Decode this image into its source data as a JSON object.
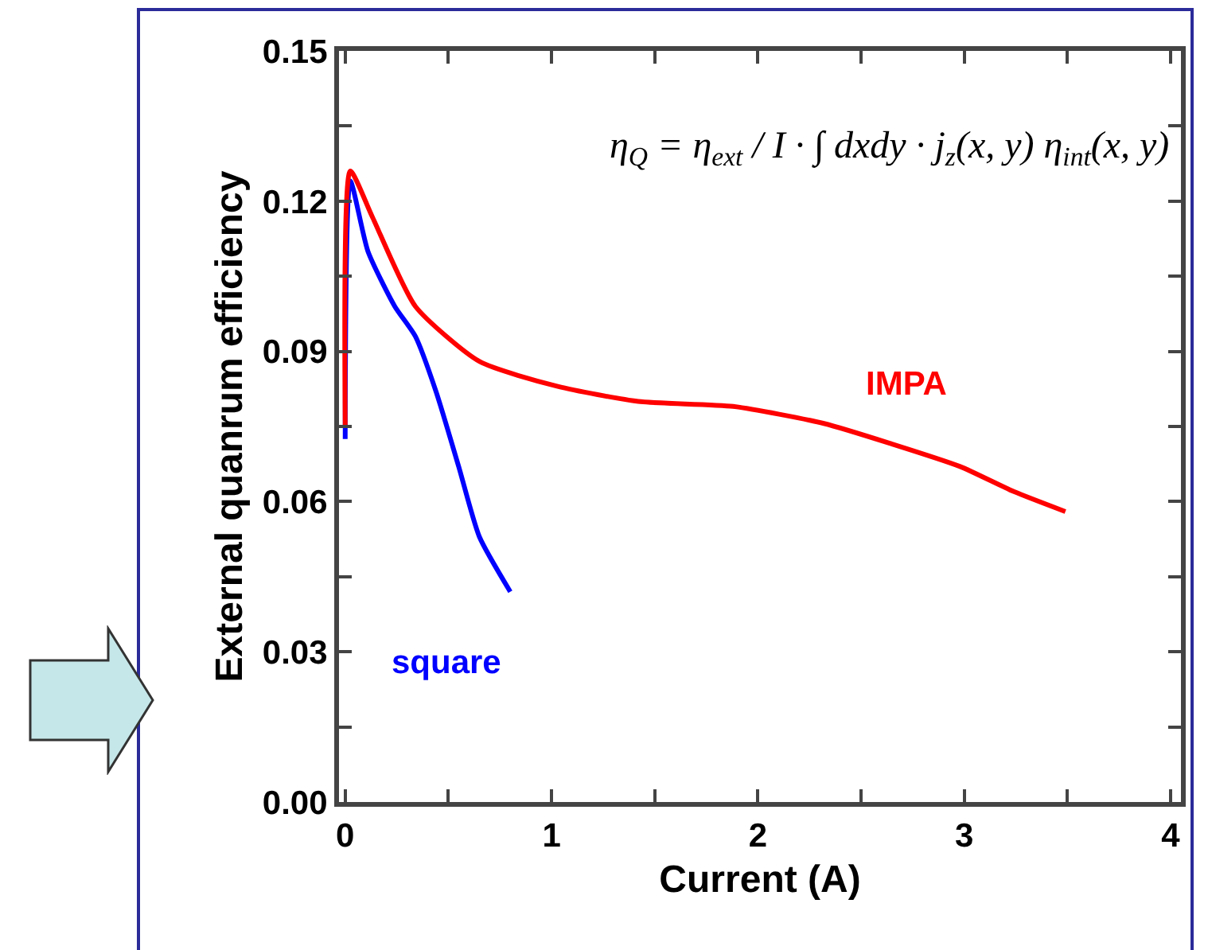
{
  "chart_data": {
    "type": "line",
    "xlabel": "Current (A)",
    "ylabel": "External quanrum efficiency",
    "xlim": [
      -0.03,
      4.05
    ],
    "ylim": [
      0,
      0.15
    ],
    "xticks": [
      0,
      {
        "value": 0.5,
        "label": null
      },
      1,
      {
        "value": 1.5,
        "label": null
      },
      2,
      {
        "value": 2.5,
        "label": null
      },
      3,
      {
        "value": 3.5,
        "label": null
      },
      4
    ],
    "yticks": [
      {
        "value": 0,
        "label": "0.00"
      },
      {
        "value": 0.015,
        "label": null
      },
      {
        "value": 0.03,
        "label": "0.03"
      },
      {
        "value": 0.045,
        "label": null
      },
      {
        "value": 0.06,
        "label": "0.06"
      },
      {
        "value": 0.075,
        "label": null
      },
      {
        "value": 0.09,
        "label": "0.09"
      },
      {
        "value": 0.105,
        "label": null
      },
      {
        "value": 0.12,
        "label": "0.12"
      },
      {
        "value": 0.135,
        "label": null
      },
      {
        "value": 0.15,
        "label": "0.15"
      }
    ],
    "grid": false,
    "legend": false,
    "marker": "none",
    "line_style": "solid",
    "annotations": [
      "η$_{Q}$ = η$_{ext}$ / I · ∫ dxdy · j$_{z}$(x, y) η$_{int}$(x, y)"
    ],
    "series": [
      {
        "name": "IMPA",
        "color": "#ff0000",
        "x": [
          0,
          0.025,
          0.13,
          0.34,
          0.65,
          1.03,
          1.42,
          1.88,
          2.32,
          2.65,
          2.98,
          3.24,
          3.49
        ],
        "values": [
          0.075,
          0.126,
          0.117,
          0.099,
          0.088,
          0.083,
          0.08,
          0.079,
          0.0756,
          0.0715,
          0.067,
          0.062,
          0.058
        ]
      },
      {
        "name": "square",
        "color": "#0000ff",
        "x": [
          0,
          0.025,
          0.11,
          0.24,
          0.34,
          0.44,
          0.55,
          0.65,
          0.8
        ],
        "values": [
          0.0725,
          0.124,
          0.11,
          0.099,
          0.093,
          0.082,
          0.067,
          0.053,
          0.042
        ]
      }
    ]
  }
}
